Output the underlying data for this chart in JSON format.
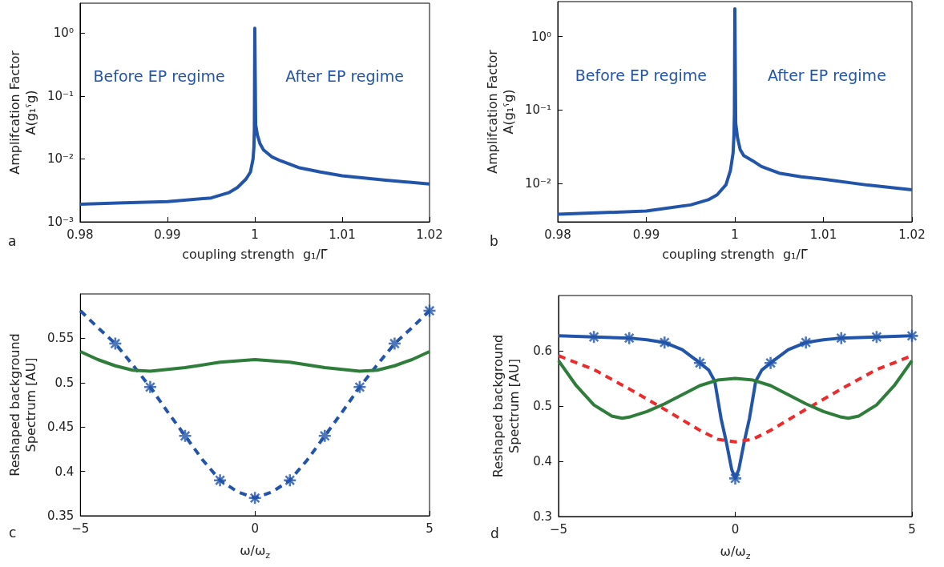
{
  "chart_data": [
    {
      "type": "line",
      "xlabel": "coupling strength  g₁/Γ̃",
      "ylabel": "Amplifcation Factor\nA(g₁ˁg)",
      "log": "y",
      "grid": false,
      "xlim": [
        0.98,
        1.02
      ],
      "xticks": [
        0.98,
        0.99,
        1,
        1.01,
        1.02
      ],
      "ylim": [
        0.001,
        3
      ],
      "yticks": [
        {
          "value": 0.001,
          "label": "10⁻³"
        },
        {
          "value": 0.01,
          "label": "10⁻²"
        },
        {
          "value": 0.1,
          "label": "10⁻¹"
        },
        {
          "value": 1,
          "label": "10⁰"
        }
      ],
      "annotations": [
        "a",
        "Before EP regime",
        "After EP regime"
      ],
      "x": [
        0.98,
        0.985,
        0.99,
        0.995,
        0.997,
        0.998,
        0.999,
        0.9995,
        0.9998,
        0.9999,
        0.99995,
        1,
        1.0001,
        1.0003,
        1.0006,
        1.001,
        1.002,
        1.003,
        1.005,
        1.0075,
        1.01,
        1.015,
        1.02
      ],
      "series": [
        {
          "color": "#2255aa",
          "values": [
            0.0019,
            0.002,
            0.0021,
            0.0024,
            0.0029,
            0.0035,
            0.0048,
            0.0062,
            0.01,
            0.0155,
            0.03,
            1.2,
            0.035,
            0.024,
            0.0174,
            0.0139,
            0.0107,
            0.0093,
            0.0073,
            0.0062,
            0.0054,
            0.0046,
            0.004
          ]
        }
      ]
    },
    {
      "type": "line",
      "xlabel": "coupling strength  g₁/Γ̃",
      "ylabel": "Amplifcation Factor\nA(g₁ˁg)",
      "log": "y",
      "grid": false,
      "xlim": [
        0.98,
        1.02
      ],
      "xticks": [
        0.98,
        0.99,
        1,
        1.01,
        1.02
      ],
      "ylim": [
        0.003,
        3
      ],
      "yticks": [
        {
          "value": 0.01,
          "label": "10⁻²"
        },
        {
          "value": 0.1,
          "label": "10⁻¹"
        },
        {
          "value": 1,
          "label": "10⁰"
        }
      ],
      "annotations": [
        "b",
        "Before EP regime",
        "After EP regime"
      ],
      "x": [
        0.98,
        0.985,
        0.99,
        0.995,
        0.997,
        0.998,
        0.999,
        0.9995,
        0.9998,
        0.9999,
        0.99995,
        1,
        1.0001,
        1.0003,
        1.0006,
        1.001,
        1.002,
        1.003,
        1.005,
        1.0075,
        1.01,
        1.015,
        1.02
      ],
      "series": [
        {
          "color": "#2255aa",
          "values": [
            0.0038,
            0.004,
            0.0042,
            0.0051,
            0.006,
            0.007,
            0.0096,
            0.015,
            0.026,
            0.045,
            0.09,
            2.4,
            0.066,
            0.042,
            0.029,
            0.024,
            0.0204,
            0.017,
            0.0138,
            0.0123,
            0.0114,
            0.0095,
            0.0082
          ]
        }
      ]
    },
    {
      "type": "line",
      "xlabel": "ω/ω$_{z}$",
      "ylabel": "Reshaped background\nSpectrum [AU]",
      "grid": false,
      "xlim": [
        -5,
        5
      ],
      "xticks": [
        {
          "value": -5,
          "label": "−5"
        },
        0,
        5
      ],
      "ylim": [
        0.35,
        0.6
      ],
      "yticks": [
        0.35,
        0.4,
        0.45,
        0.5,
        0.55
      ],
      "annotations": [
        "c"
      ],
      "series": [
        {
          "color": "#2255aa",
          "line_style": "dashed",
          "marker": "none",
          "x": [
            -5,
            -4.5,
            -4,
            -3.5,
            -3,
            -2.5,
            -2,
            -1.5,
            -1,
            -0.5,
            0,
            0.5,
            1,
            1.5,
            2,
            2.5,
            3,
            3.5,
            4,
            4.5,
            5
          ],
          "values": [
            0.581,
            0.562,
            0.544,
            0.52,
            0.495,
            0.467,
            0.44,
            0.413,
            0.39,
            0.377,
            0.37,
            0.377,
            0.39,
            0.413,
            0.44,
            0.467,
            0.495,
            0.52,
            0.544,
            0.562,
            0.581
          ]
        },
        {
          "type": "scatter",
          "color": "#2255aa",
          "marker": "star",
          "x": [
            -4,
            -3,
            -2,
            -1,
            0,
            1,
            2,
            3,
            4,
            5
          ],
          "values": [
            0.544,
            0.495,
            0.44,
            0.39,
            0.37,
            0.39,
            0.44,
            0.495,
            0.544,
            0.581
          ]
        },
        {
          "color": "#2e7d3a",
          "line_style": "solid",
          "marker": "none",
          "x": [
            -5,
            -4.5,
            -4,
            -3.5,
            -3,
            -2,
            -1,
            0,
            1,
            2,
            3,
            3.5,
            4,
            4.5,
            5
          ],
          "values": [
            0.535,
            0.526,
            0.519,
            0.514,
            0.513,
            0.517,
            0.523,
            0.526,
            0.523,
            0.517,
            0.513,
            0.514,
            0.519,
            0.526,
            0.535
          ]
        }
      ]
    },
    {
      "type": "line",
      "xlabel": "ω/ω$_{z}$",
      "ylabel": "Reshaped background\nSpectrum [AU]",
      "grid": false,
      "xlim": [
        -5,
        5
      ],
      "xticks": [
        {
          "value": -5,
          "label": "−5"
        },
        0,
        5
      ],
      "ylim": [
        0.3,
        0.7
      ],
      "yticks": [
        0.3,
        0.4,
        0.5,
        0.6
      ],
      "annotations": [
        "d"
      ],
      "series": [
        {
          "color": "#2255aa",
          "line_style": "solid",
          "marker": "none",
          "x": [
            -5,
            -4,
            -3,
            -2.5,
            -2,
            -1.5,
            -1,
            -0.75,
            -0.58,
            -0.4,
            -0.25,
            -0.1,
            0,
            0.1,
            0.25,
            0.4,
            0.58,
            0.75,
            1,
            1.5,
            2,
            2.5,
            3,
            4,
            5
          ],
          "values": [
            0.627,
            0.625,
            0.623,
            0.62,
            0.615,
            0.602,
            0.578,
            0.565,
            0.545,
            0.477,
            0.434,
            0.385,
            0.369,
            0.385,
            0.434,
            0.477,
            0.545,
            0.565,
            0.578,
            0.602,
            0.615,
            0.62,
            0.623,
            0.625,
            0.627
          ]
        },
        {
          "type": "scatter",
          "color": "#2255aa",
          "marker": "star",
          "x": [
            -4,
            -3,
            -2,
            -1,
            0,
            1,
            2,
            3,
            4,
            5
          ],
          "values": [
            0.625,
            0.623,
            0.615,
            0.578,
            0.369,
            0.578,
            0.615,
            0.623,
            0.625,
            0.627
          ]
        },
        {
          "color": "#ee2a2a",
          "line_style": "dashed",
          "marker": "none",
          "x": [
            -5,
            -4,
            -3,
            -2,
            -1,
            -0.5,
            0,
            0.5,
            1,
            2,
            3,
            4,
            5
          ],
          "values": [
            0.591,
            0.566,
            0.531,
            0.494,
            0.456,
            0.44,
            0.435,
            0.44,
            0.456,
            0.494,
            0.531,
            0.566,
            0.591
          ]
        },
        {
          "color": "#2e7d3a",
          "line_style": "solid",
          "marker": "none",
          "x": [
            -5,
            -4.5,
            -4,
            -3.5,
            -3.2,
            -3,
            -2.5,
            -2,
            -1,
            -0.5,
            0,
            0.5,
            1,
            2,
            2.5,
            3,
            3.2,
            3.5,
            4,
            4.5,
            5
          ],
          "values": [
            0.582,
            0.537,
            0.502,
            0.482,
            0.478,
            0.48,
            0.49,
            0.504,
            0.537,
            0.547,
            0.55,
            0.547,
            0.537,
            0.504,
            0.49,
            0.48,
            0.478,
            0.482,
            0.502,
            0.537,
            0.582
          ]
        }
      ]
    }
  ]
}
